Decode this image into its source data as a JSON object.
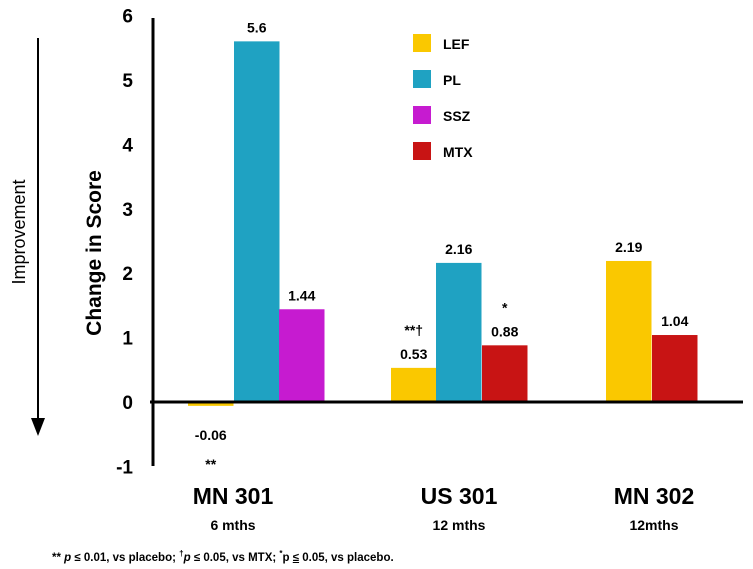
{
  "chart_data": {
    "type": "bar",
    "ylabel": "Change in Score",
    "side_label": "Improvement",
    "ylim": [
      -1,
      6
    ],
    "yticks": [
      "6",
      "5",
      "4",
      "3",
      "2",
      "1",
      "0",
      "-1"
    ],
    "ytick_values": [
      6,
      5,
      4,
      3,
      2,
      1,
      0,
      -1
    ],
    "grid": false,
    "legend_position": "top-center",
    "colors": {
      "LEF": "#fac800",
      "PL": "#1fa2c2",
      "SSZ": "#c61bd0",
      "MTX": "#c81414"
    },
    "groups": [
      {
        "category": "MN 301",
        "subtitle": "6 mths",
        "bars": [
          {
            "series": "LEF",
            "value": -0.06,
            "label": "-0.06",
            "sig": "**"
          },
          {
            "series": "PL",
            "value": 5.6,
            "label": "5.6",
            "sig": ""
          },
          {
            "series": "SSZ",
            "value": 1.44,
            "label": "1.44",
            "sig": ""
          }
        ]
      },
      {
        "category": "US 301",
        "subtitle": "12 mths",
        "bars": [
          {
            "series": "LEF",
            "value": 0.53,
            "label": "0.53",
            "sig": "**†"
          },
          {
            "series": "PL",
            "value": 2.16,
            "label": "2.16",
            "sig": ""
          },
          {
            "series": "MTX",
            "value": 0.88,
            "label": "0.88",
            "sig": "*"
          }
        ]
      },
      {
        "category": "MN 302",
        "subtitle": "12mths",
        "bars": [
          {
            "series": "LEF",
            "value": 2.19,
            "label": "2.19",
            "sig": ""
          },
          {
            "series": "MTX",
            "value": 1.04,
            "label": "1.04",
            "sig": ""
          }
        ]
      }
    ],
    "legend": [
      "LEF",
      "PL",
      "SSZ",
      "MTX"
    ]
  },
  "footnote": {
    "a": "** ",
    "b": "p",
    "c": " ≤ 0.01, vs placebo; ",
    "d": "†",
    "e": "p",
    "f": " ≤ 0.05, vs MTX; ",
    "g": "*",
    "h": "p  ",
    "i": "≤",
    "j": " 0.05, vs placebo."
  }
}
